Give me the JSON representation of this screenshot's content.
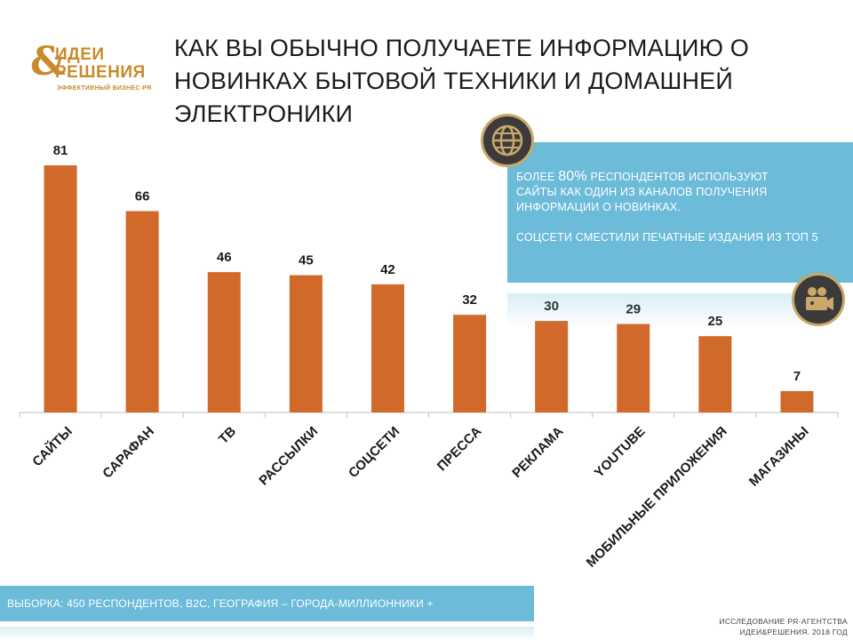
{
  "logo": {
    "mark": "&",
    "top": "ИДЕИ",
    "bottom": "РЕШЕНИЯ",
    "tagline": "ЭФФЕКТИВНЫЙ БИЗНЕС-PR"
  },
  "title": "КАК ВЫ ОБЫЧНО ПОЛУЧАЕТЕ ИНФОРМАЦИЮ О НОВИНКАХ БЫТОВОЙ ТЕХНИКИ И ДОМАШНЕЙ ЭЛЕКТРОНИКИ",
  "info": {
    "line1_pre": "БОЛЕЕ ",
    "line1_big": "80%",
    "line1_post": " РЕСПОНДЕНТОВ ИСПОЛЬЗУЮТ",
    "line2": "САЙТЫ КАК ОДИН ИЗ КАНАЛОВ ПОЛУЧЕНИЯ",
    "line3": "ИНФОРМАЦИИ О НОВИНКАХ.",
    "line4": "СОЦСЕТИ СМЕСТИЛИ  ПЕЧАТНЫЕ ИЗДАНИЯ ИЗ ТОП 5"
  },
  "icons": {
    "globe": "globe-icon",
    "camera": "video-camera-icon"
  },
  "footer": {
    "sample": "ВЫБОРКА: 450 РЕСПОНДЕНТОВ, В2С, ГЕОГРАФИЯ – ГОРОДА-МИЛЛИОННИКИ +"
  },
  "credit": {
    "line1": "ИССЛЕДОВАНИЕ PR-АГЕНТСТВА",
    "line2": "ИДЕИ&РЕШЕНИЯ. 2018 ГОД"
  },
  "colors": {
    "bar": "#d0692a",
    "accent_blue": "#6cbbd9",
    "gold": "#c98a2b"
  },
  "chart_data": {
    "type": "bar",
    "title": "",
    "categories": [
      "САЙТЫ",
      "САРАФАН",
      "ТВ",
      "РАССЫЛКИ",
      "СОЦСЕТИ",
      "ПРЕССА",
      "РЕКЛАМА",
      "YOUTUBE",
      "МОБИЛЬНЫЕ ПРИЛОЖЕНИЯ",
      "МАГАЗИНЫ"
    ],
    "values": [
      81,
      66,
      46,
      45,
      42,
      32,
      30,
      29,
      25,
      7
    ],
    "xlabel": "",
    "ylabel": "",
    "ylim": [
      0,
      81
    ],
    "grid": false,
    "data_labels": true
  }
}
